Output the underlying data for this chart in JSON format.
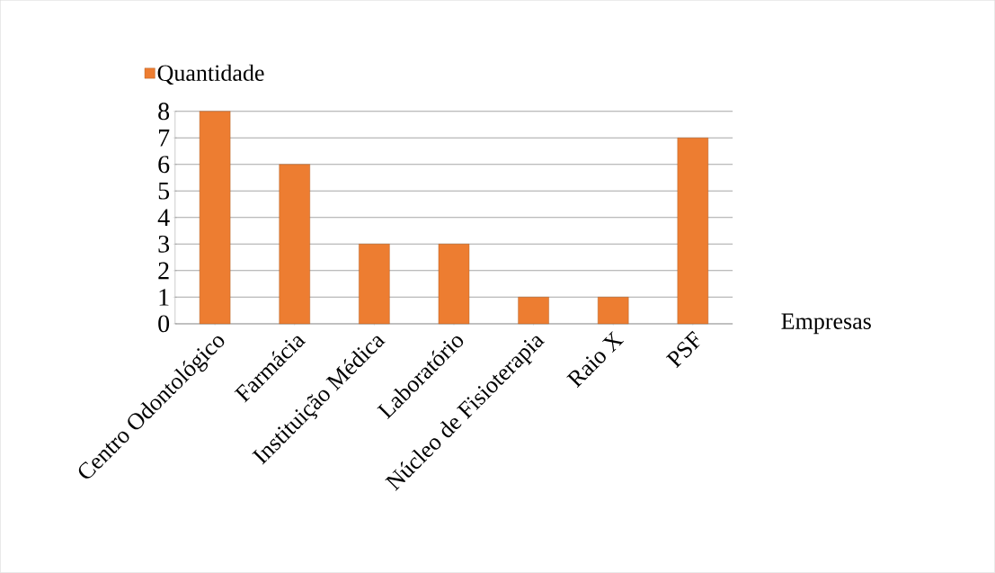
{
  "chart_data": {
    "type": "bar",
    "categories": [
      "Centro Odontológico",
      "Farmácia",
      "Instituição Médica",
      "Laboratório",
      "Núcleo de Fisioterapia",
      "Raio X",
      "PSF"
    ],
    "series": [
      {
        "name": "Quantidade",
        "color": "#ed7d31",
        "values": [
          8,
          6,
          3,
          3,
          1,
          1,
          7
        ]
      }
    ],
    "xlabel": "Empresas",
    "ylim": [
      0,
      8
    ],
    "yticks": [
      0,
      1,
      2,
      3,
      4,
      5,
      6,
      7,
      8
    ],
    "grid": "y",
    "legend": "top left"
  }
}
